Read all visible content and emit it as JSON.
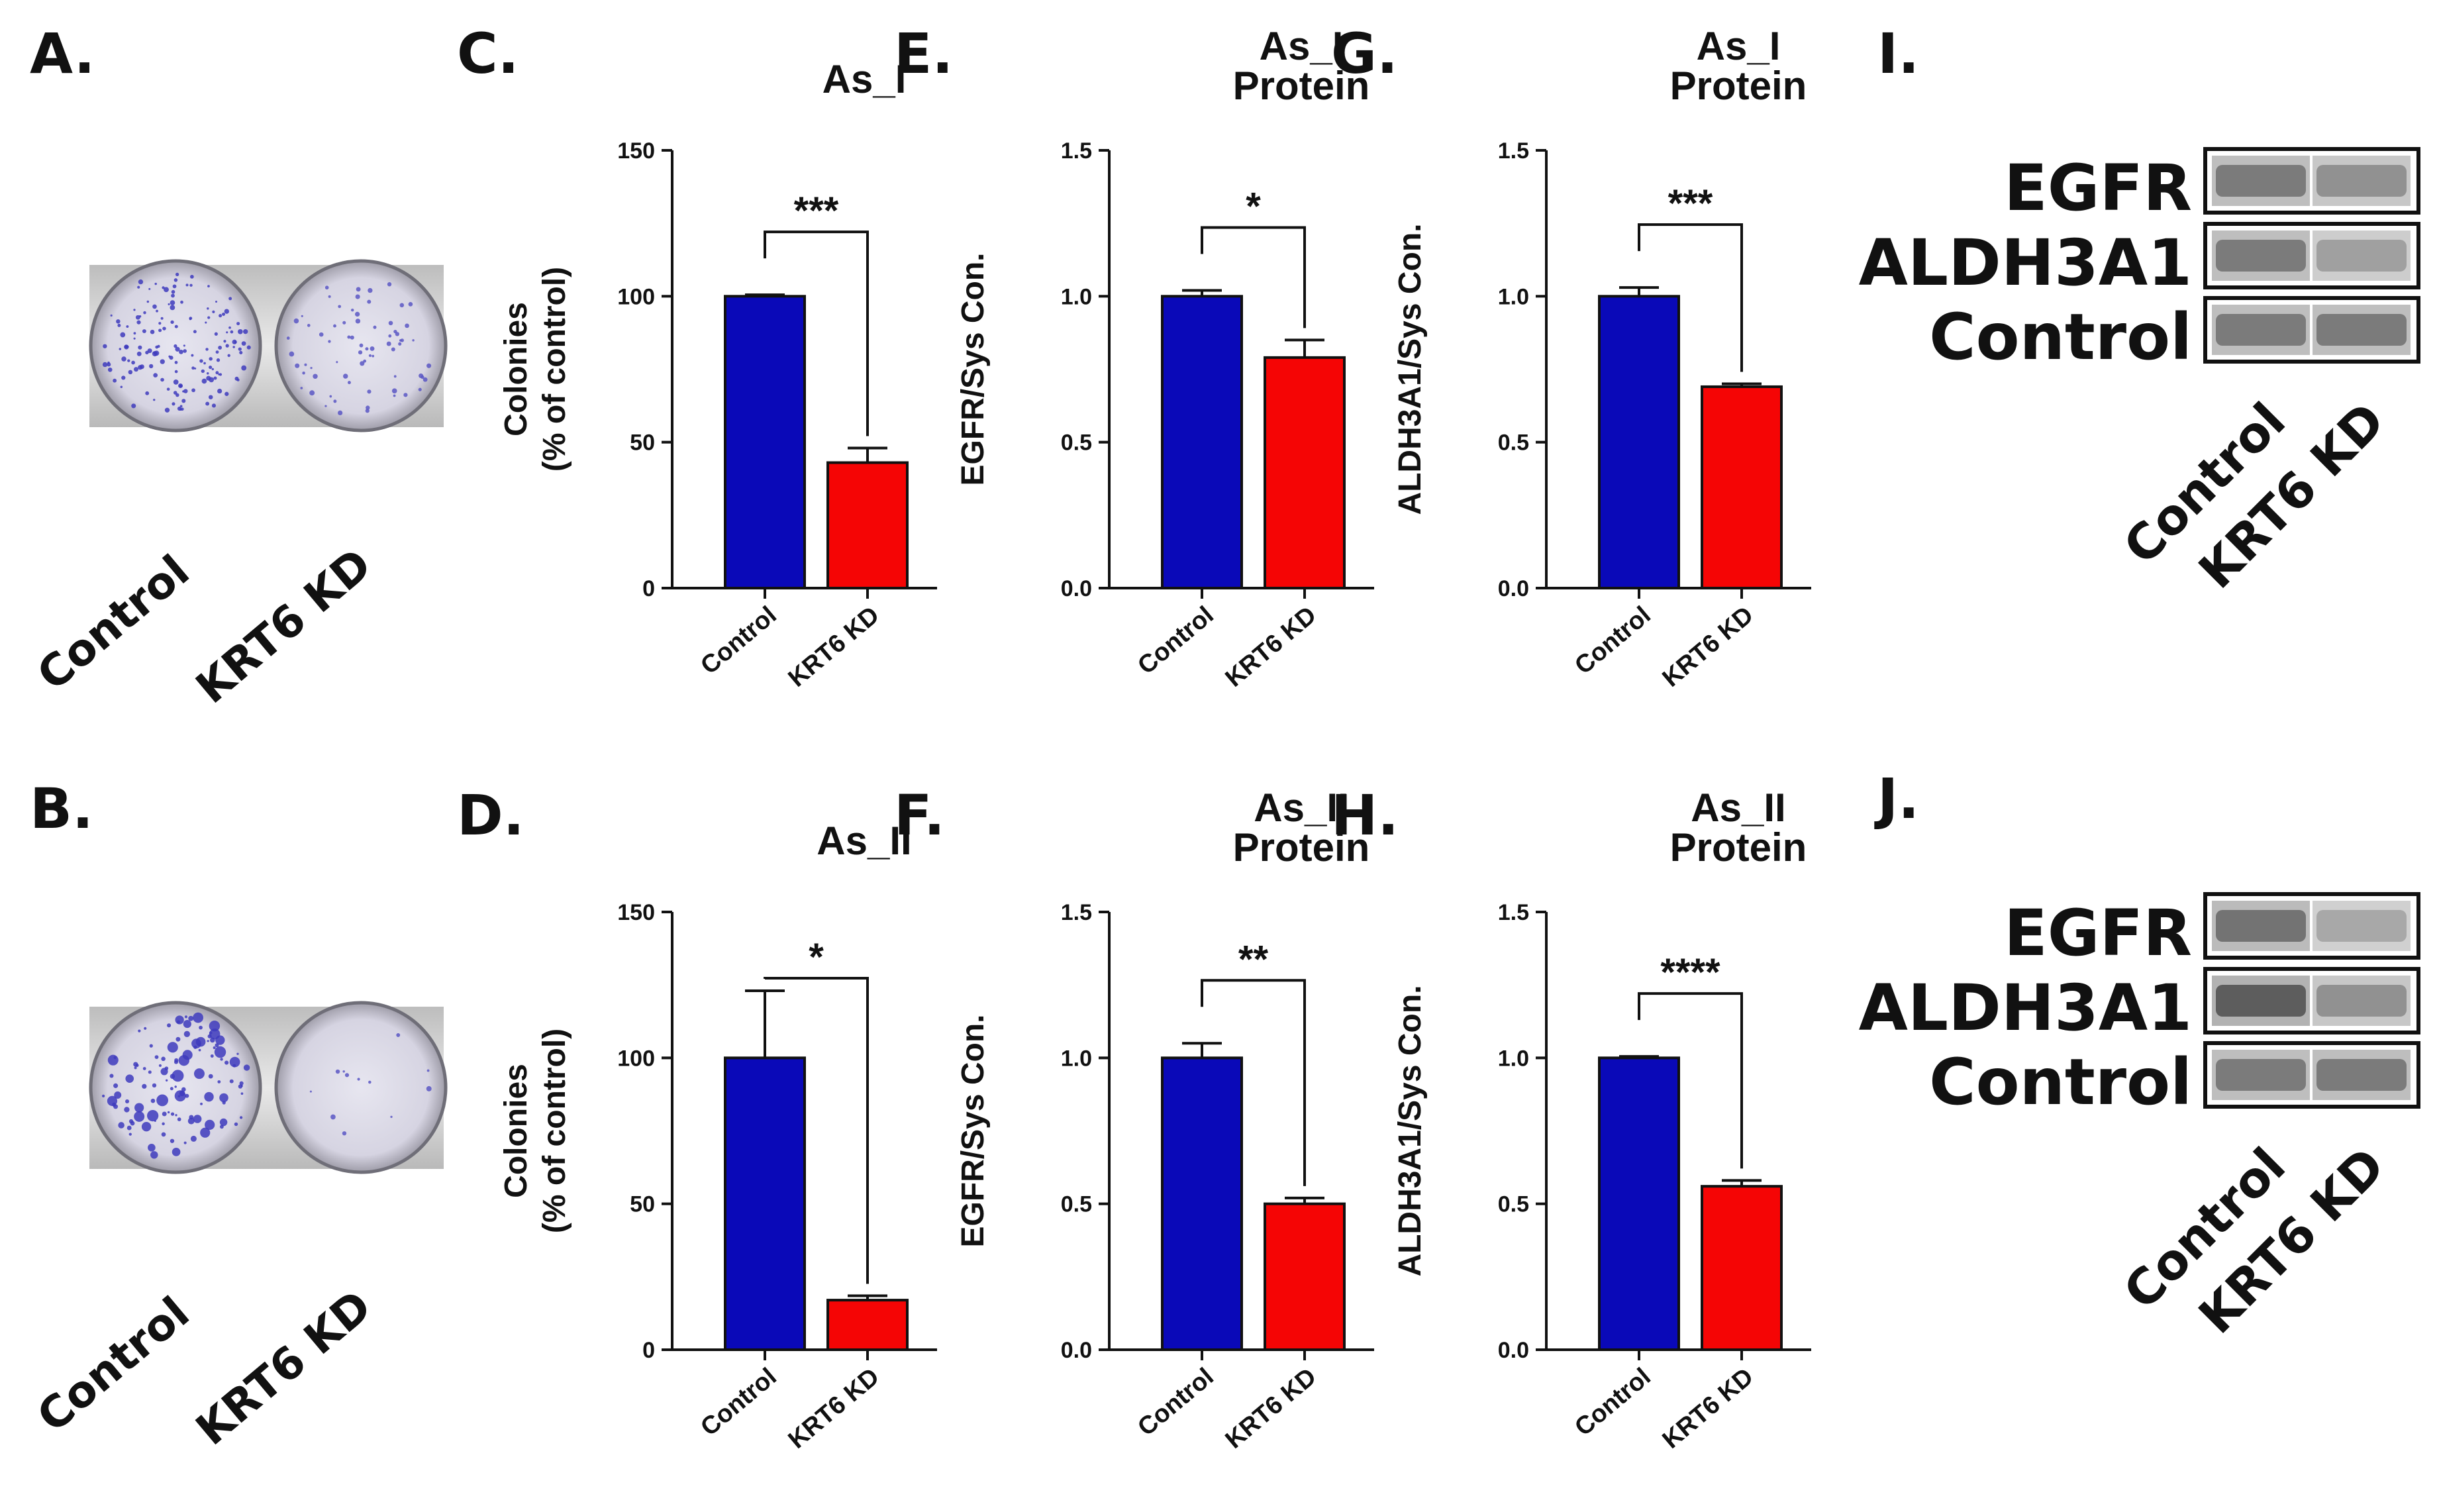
{
  "colors": {
    "control": "#0A09B8",
    "kd": "#F50505",
    "ink": "#111111"
  },
  "groups": [
    "Control",
    "KRT6 KD"
  ],
  "photo_panels": [
    {
      "letter": "A.",
      "labels": [
        "Control",
        "KRT6 KD"
      ],
      "control_colonies": "many",
      "kd_colonies": "fewer"
    },
    {
      "letter": "B.",
      "labels": [
        "Control",
        "KRT6 KD"
      ],
      "control_colonies": "many",
      "kd_colonies": "very few"
    }
  ],
  "blot_panels": [
    {
      "letter": "I.",
      "rows": [
        "EGFR",
        "ALDH3A1",
        "Control"
      ],
      "lanes": [
        "Control",
        "KRT6 KD"
      ],
      "band_intensity": [
        [
          0.75,
          0.6
        ],
        [
          0.75,
          0.5
        ],
        [
          0.75,
          0.75
        ]
      ]
    },
    {
      "letter": "J.",
      "rows": [
        "EGFR",
        "ALDH3A1",
        "Control"
      ],
      "lanes": [
        "Control",
        "KRT6 KD"
      ],
      "band_intensity": [
        [
          0.8,
          0.45
        ],
        [
          0.95,
          0.6
        ],
        [
          0.75,
          0.75
        ]
      ]
    }
  ],
  "chart_data": [
    {
      "letter": "C.",
      "type": "bar",
      "title": [
        "As_I"
      ],
      "ylabel": [
        "Colonies",
        "(% of control)"
      ],
      "categories": [
        "Control",
        "KRT6 KD"
      ],
      "values": [
        100,
        43
      ],
      "errors": [
        0.5,
        5
      ],
      "ylim": [
        0,
        150
      ],
      "yticks": [
        "0",
        "50",
        "100",
        "150"
      ],
      "tick_values": [
        0,
        50,
        100,
        150
      ],
      "significance": "***"
    },
    {
      "letter": "E.",
      "type": "bar",
      "title": [
        "As_I",
        "Protein"
      ],
      "ylabel": [
        "EGFR/Sys Con."
      ],
      "categories": [
        "Control",
        "KRT6 KD"
      ],
      "values": [
        1.0,
        0.79
      ],
      "errors": [
        0.02,
        0.06
      ],
      "ylim": [
        0,
        1.5
      ],
      "yticks": [
        "0.0",
        "0.5",
        "1.0",
        "1.5"
      ],
      "tick_values": [
        0,
        0.5,
        1.0,
        1.5
      ],
      "significance": "*"
    },
    {
      "letter": "G.",
      "type": "bar",
      "title": [
        "As_I",
        "Protein"
      ],
      "ylabel": [
        "ALDH3A1/Sys Con."
      ],
      "categories": [
        "Control",
        "KRT6 KD"
      ],
      "values": [
        1.0,
        0.69
      ],
      "errors": [
        0.03,
        0.01
      ],
      "ylim": [
        0,
        1.5
      ],
      "yticks": [
        "0.0",
        "0.5",
        "1.0",
        "1.5"
      ],
      "tick_values": [
        0,
        0.5,
        1.0,
        1.5
      ],
      "significance": "***"
    },
    {
      "letter": "D.",
      "type": "bar",
      "title": [
        "As_II"
      ],
      "ylabel": [
        "Colonies",
        "(% of control)"
      ],
      "categories": [
        "Control",
        "KRT6 KD"
      ],
      "values": [
        100,
        17
      ],
      "errors": [
        23,
        1.5
      ],
      "ylim": [
        0,
        150
      ],
      "yticks": [
        "0",
        "50",
        "100",
        "150"
      ],
      "tick_values": [
        0,
        50,
        100,
        150
      ],
      "significance": "*"
    },
    {
      "letter": "F.",
      "type": "bar",
      "title": [
        "As_II",
        "Protein"
      ],
      "ylabel": [
        "EGFR/Sys Con."
      ],
      "categories": [
        "Control",
        "KRT6 KD"
      ],
      "values": [
        1.0,
        0.5
      ],
      "errors": [
        0.05,
        0.02
      ],
      "ylim": [
        0,
        1.5
      ],
      "yticks": [
        "0.0",
        "0.5",
        "1.0",
        "1.5"
      ],
      "tick_values": [
        0,
        0.5,
        1.0,
        1.5
      ],
      "significance": "**"
    },
    {
      "letter": "H.",
      "type": "bar",
      "title": [
        "As_II",
        "Protein"
      ],
      "ylabel": [
        "ALDH3A1/Sys Con."
      ],
      "categories": [
        "Control",
        "KRT6 KD"
      ],
      "values": [
        1.0,
        0.56
      ],
      "errors": [
        0.005,
        0.02
      ],
      "ylim": [
        0,
        1.5
      ],
      "yticks": [
        "0.0",
        "0.5",
        "1.0",
        "1.5"
      ],
      "tick_values": [
        0,
        0.5,
        1.0,
        1.5
      ],
      "significance": "****"
    }
  ]
}
